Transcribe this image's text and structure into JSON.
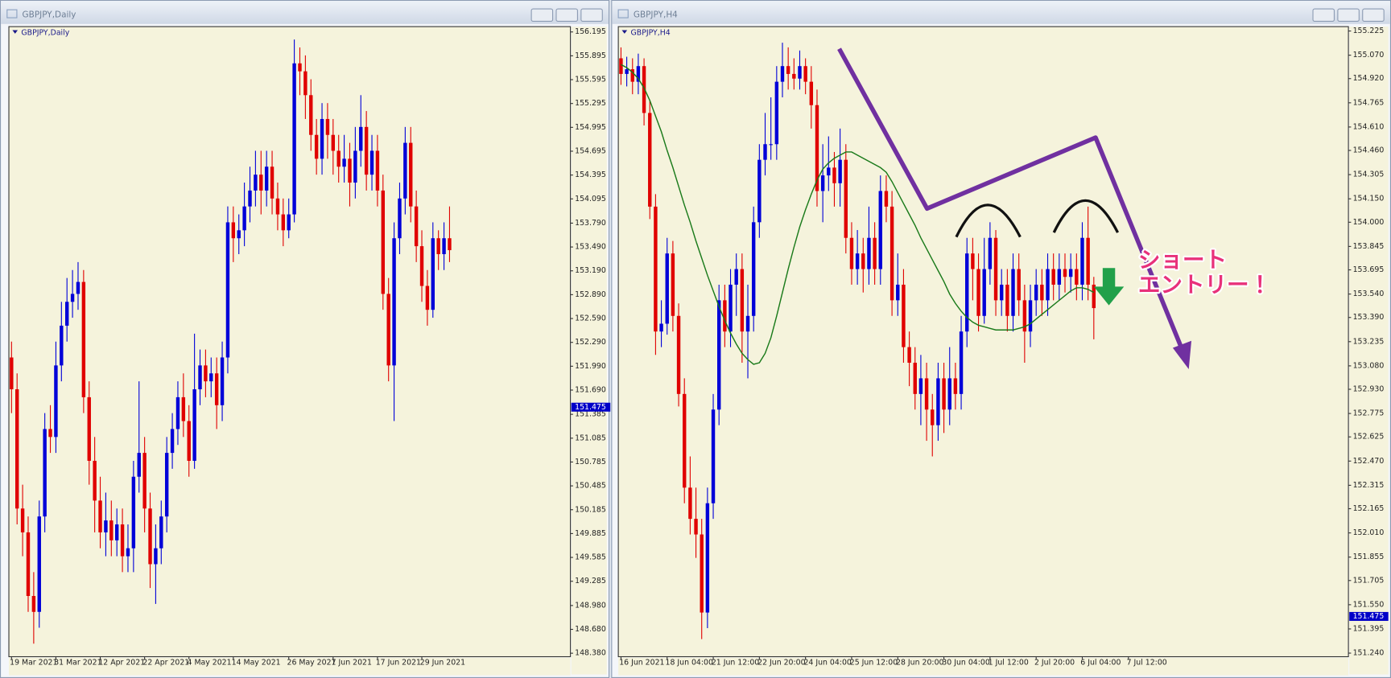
{
  "chart_data": [
    {
      "type": "candlestick",
      "window_title": "GBPJPY,Daily",
      "title": "GBPJPY,Daily",
      "up_color": "#0000d8",
      "down_color": "#e00000",
      "current_price": 151.475,
      "ylim": [
        148.336,
        156.262
      ],
      "yticks": [
        156.195,
        155.895,
        155.595,
        155.295,
        154.995,
        154.695,
        154.395,
        154.095,
        {
          "value": 153.79,
          "label": "153.790"
        },
        {
          "value": 153.49,
          "label": "153.490"
        },
        {
          "value": 153.19,
          "label": "153.190"
        },
        {
          "value": 152.89,
          "label": "152.890"
        },
        {
          "value": 152.59,
          "label": "152.590"
        },
        {
          "value": 152.29,
          "label": "152.290"
        },
        {
          "value": 151.99,
          "label": "151.990"
        },
        {
          "value": 151.69,
          "label": "151.690"
        },
        151.385,
        151.085,
        150.785,
        150.485,
        150.185,
        149.885,
        149.585,
        149.285,
        {
          "value": 148.98,
          "label": "148.980"
        },
        {
          "value": 148.68,
          "label": "148.680"
        },
        {
          "value": 148.38,
          "label": "148.380"
        }
      ],
      "categories": [
        "19 Mar 2021",
        null,
        null,
        null,
        null,
        null,
        null,
        null,
        "31 Mar 2021",
        null,
        null,
        null,
        null,
        null,
        null,
        null,
        "12 Apr 2021",
        null,
        null,
        null,
        null,
        null,
        null,
        null,
        "22 Apr 2021",
        null,
        null,
        null,
        null,
        null,
        null,
        null,
        "4 May 2021",
        null,
        null,
        null,
        null,
        null,
        null,
        null,
        "14 May 2021",
        null,
        null,
        null,
        null,
        null,
        null,
        null,
        null,
        null,
        "26 May 2021",
        null,
        null,
        null,
        null,
        null,
        null,
        null,
        "7 Jun 2021",
        null,
        null,
        null,
        null,
        null,
        null,
        null,
        "17 Jun 2021",
        null,
        null,
        null,
        null,
        null,
        null,
        null,
        "29 Jun 2021",
        null,
        null,
        null,
        null,
        null
      ],
      "open": [
        152.1,
        151.7,
        150.2,
        149.9,
        149.1,
        148.9,
        150.1,
        151.2,
        151.1,
        152,
        152.5,
        152.8,
        152.9,
        153.05,
        151.6,
        150.8,
        150.3,
        149.9,
        150.05,
        149.8,
        150,
        149.6,
        149.7,
        150.6,
        150.9,
        150.2,
        149.5,
        149.7,
        150.1,
        150.9,
        151.2,
        151.6,
        151.3,
        150.8,
        151.7,
        152,
        151.8,
        151.9,
        151.5,
        152.1,
        153.8,
        153.6,
        153.7,
        154,
        154.2,
        154.4,
        154.2,
        154.5,
        154.1,
        153.9,
        153.7,
        153.9,
        155.8,
        155.7,
        155.4,
        154.9,
        154.6,
        155.1,
        154.9,
        154.7,
        154.5,
        154.6,
        154.3,
        154.7,
        155,
        154.4,
        154.7,
        154.2,
        152.9,
        152,
        153.6,
        154.1,
        154.8,
        154,
        153.5,
        153,
        152.7,
        153.6,
        153.4,
        153.6
      ],
      "high": [
        152.3,
        151.9,
        150.5,
        150.1,
        149.4,
        150.3,
        151.4,
        151.5,
        152.3,
        152.8,
        153.1,
        153.2,
        153.3,
        153.2,
        151.8,
        151.1,
        150.6,
        150.4,
        150.3,
        150.2,
        150.2,
        150,
        150.8,
        151.8,
        151.1,
        150.4,
        150,
        150.3,
        151.1,
        151.4,
        151.8,
        151.9,
        151.5,
        152.4,
        152.2,
        152.2,
        152.1,
        152.1,
        152.3,
        154,
        154,
        153.9,
        154.3,
        154.5,
        154.7,
        154.7,
        154.7,
        154.7,
        154.3,
        154.1,
        154.1,
        156.1,
        156,
        155.9,
        155.6,
        155.1,
        155.3,
        155.3,
        155.1,
        154.9,
        154.9,
        154.8,
        155,
        155.4,
        155.2,
        154.9,
        154.9,
        154.4,
        153.1,
        153.8,
        154.3,
        155,
        155,
        154.2,
        153.7,
        153.2,
        153.8,
        153.7,
        153.8,
        154
      ],
      "low": [
        151.4,
        150,
        149.6,
        148.9,
        148.5,
        148.7,
        149.9,
        150.9,
        150.9,
        151.8,
        152.3,
        152.6,
        152.7,
        151.4,
        150.5,
        149.9,
        149.7,
        149.6,
        149.6,
        149.6,
        149.4,
        149.4,
        149.4,
        150.4,
        149.9,
        149.2,
        149,
        149.5,
        149.9,
        150.7,
        151,
        151.1,
        150.6,
        150.7,
        151.5,
        151.6,
        151.6,
        151.2,
        151.3,
        151.9,
        153.3,
        153.4,
        153.5,
        153.8,
        154,
        153.9,
        154,
        153.9,
        153.7,
        153.5,
        153.6,
        153.8,
        155.4,
        155.1,
        154.7,
        154.4,
        154.4,
        154.6,
        154.4,
        154.3,
        154.3,
        154,
        154.1,
        154.5,
        154.2,
        154.2,
        154,
        152.7,
        151.8,
        151.3,
        153.4,
        153.9,
        153.8,
        153.3,
        152.8,
        152.5,
        152.6,
        153.2,
        153.2,
        153.3
      ],
      "close": [
        151.7,
        150.2,
        149.9,
        149.1,
        148.9,
        150.1,
        151.2,
        151.1,
        152,
        152.5,
        152.8,
        152.9,
        153.05,
        151.6,
        150.8,
        150.3,
        149.9,
        150.05,
        149.8,
        150,
        149.6,
        149.7,
        150.6,
        150.9,
        150.2,
        149.5,
        149.7,
        150.1,
        150.9,
        151.2,
        151.6,
        151.3,
        150.8,
        151.7,
        152,
        151.8,
        151.9,
        151.5,
        152.1,
        153.8,
        153.6,
        153.7,
        154,
        154.2,
        154.4,
        154.2,
        154.5,
        154.1,
        153.9,
        153.7,
        153.9,
        155.8,
        155.7,
        155.4,
        154.9,
        154.6,
        155.1,
        154.9,
        154.7,
        154.5,
        154.6,
        154.3,
        154.7,
        155,
        154.4,
        154.7,
        154.2,
        152.9,
        152,
        153.6,
        154.1,
        154.8,
        154,
        153.5,
        153,
        152.7,
        153.6,
        153.4,
        153.6,
        153.45
      ]
    },
    {
      "type": "candlestick",
      "window_title": "GBPJPY,H4",
      "title": "GBPJPY,H4",
      "up_color": "#0000d8",
      "down_color": "#e00000",
      "current_price": 151.475,
      "ylim": [
        151.217,
        155.253
      ],
      "yticks": [
        155.225,
        {
          "value": 155.07,
          "label": "155.070"
        },
        {
          "value": 154.92,
          "label": "154.920"
        },
        154.765,
        {
          "value": 154.61,
          "label": "154.610"
        },
        {
          "value": 154.46,
          "label": "154.460"
        },
        154.305,
        {
          "value": 154.15,
          "label": "154.150"
        },
        {
          "value": 154,
          "label": "154.000"
        },
        153.845,
        153.695,
        {
          "value": 153.54,
          "label": "153.540"
        },
        {
          "value": 153.39,
          "label": "153.390"
        },
        153.235,
        {
          "value": 153.08,
          "label": "153.080"
        },
        {
          "value": 152.93,
          "label": "152.930"
        },
        152.775,
        152.625,
        {
          "value": 152.47,
          "label": "152.470"
        },
        152.315,
        152.165,
        {
          "value": 152.01,
          "label": "152.010"
        },
        151.855,
        151.705,
        {
          "value": 151.55,
          "label": "151.550"
        },
        151.395,
        {
          "value": 151.24,
          "label": "151.240"
        }
      ],
      "categories": [
        "16 Jun 2021",
        null,
        null,
        null,
        null,
        null,
        null,
        null,
        "18 Jun 04:00",
        null,
        null,
        null,
        null,
        null,
        null,
        null,
        "21 Jun 12:00",
        null,
        null,
        null,
        null,
        null,
        null,
        null,
        "22 Jun 20:00",
        null,
        null,
        null,
        null,
        null,
        null,
        null,
        "24 Jun 04:00",
        null,
        null,
        null,
        null,
        null,
        null,
        null,
        "25 Jun 12:00",
        null,
        null,
        null,
        null,
        null,
        null,
        null,
        "28 Jun 20:00",
        null,
        null,
        null,
        null,
        null,
        null,
        null,
        "30 Jun 04:00",
        null,
        null,
        null,
        null,
        null,
        null,
        null,
        "1 Jul 12:00",
        null,
        null,
        null,
        null,
        null,
        null,
        null,
        "2 Jul 20:00",
        null,
        null,
        null,
        null,
        null,
        null,
        null,
        "6 Jul 04:00",
        null,
        null,
        null,
        null,
        null,
        null,
        null,
        "7 Jul 12:00"
      ],
      "open": [
        155.05,
        154.95,
        154.98,
        154.9,
        155,
        154.7,
        154.1,
        153.3,
        153.35,
        153.8,
        153.4,
        152.9,
        152.3,
        152.1,
        152,
        151.5,
        152.2,
        152.8,
        153.5,
        153.3,
        153.6,
        153.7,
        153.3,
        153.4,
        154,
        154.4,
        154.5,
        154.5,
        154.9,
        155,
        154.95,
        154.92,
        155,
        154.9,
        154.75,
        154.2,
        154.3,
        154.35,
        154.25,
        154.4,
        153.9,
        153.7,
        153.8,
        153.7,
        153.9,
        153.7,
        154.2,
        154.1,
        153.5,
        153.6,
        153.2,
        153.1,
        152.9,
        153,
        152.8,
        152.7,
        153,
        152.8,
        153,
        152.9,
        153.3,
        153.8,
        153.7,
        153.4,
        153.7,
        153.9,
        153.5,
        153.6,
        153.4,
        153.7,
        153.5,
        153.3,
        153.5,
        153.6,
        153.5,
        153.7,
        153.6,
        153.7,
        153.65,
        153.7,
        153.6,
        153.9,
        153.6,
        null,
        null,
        null,
        null,
        null,
        null
      ],
      "high": [
        155.12,
        155.06,
        155.05,
        155.08,
        155.05,
        154.78,
        154.18,
        153.5,
        153.9,
        153.88,
        153.48,
        153,
        152.5,
        152.3,
        152.1,
        152.3,
        152.9,
        153.6,
        153.6,
        153.7,
        153.8,
        153.8,
        153.6,
        154.1,
        154.5,
        154.7,
        154.8,
        155,
        155.15,
        155.12,
        155.05,
        155.1,
        155.05,
        155,
        154.85,
        154.5,
        154.55,
        154.45,
        154.6,
        154.5,
        154,
        153.95,
        153.9,
        154.1,
        154,
        154.3,
        154.3,
        154.2,
        153.8,
        153.7,
        153.3,
        153.2,
        153.15,
        153.1,
        152.9,
        153.1,
        153.1,
        153.2,
        153.1,
        153.4,
        153.9,
        153.9,
        153.8,
        153.9,
        154,
        153.95,
        153.7,
        153.7,
        153.8,
        153.8,
        153.6,
        153.6,
        153.7,
        153.7,
        153.8,
        153.8,
        153.8,
        153.8,
        153.8,
        153.8,
        154,
        154.1,
        153.65,
        null,
        null,
        null,
        null,
        null,
        null
      ],
      "low": [
        154.88,
        154.87,
        154.82,
        154.82,
        154.62,
        154.02,
        153.15,
        153.2,
        153.28,
        153.3,
        152.82,
        152.2,
        152,
        151.85,
        151.33,
        151.4,
        152.1,
        152.7,
        153.2,
        153.2,
        153.4,
        153.1,
        153,
        153.3,
        153.9,
        154.3,
        154.4,
        154.4,
        154.8,
        154.85,
        154.85,
        154.85,
        154.82,
        154.6,
        154.1,
        154,
        154.2,
        154.1,
        154.1,
        153.8,
        153.6,
        153.6,
        153.55,
        153.6,
        153.6,
        153.6,
        154,
        153.4,
        153.4,
        153.1,
        152.95,
        152.8,
        152.7,
        152.6,
        152.5,
        152.6,
        152.65,
        152.7,
        152.8,
        152.8,
        153.2,
        153.5,
        153.3,
        153.35,
        153.6,
        153.4,
        153.4,
        153.3,
        153.3,
        153.4,
        153.1,
        153.2,
        153.4,
        153.4,
        153.4,
        153.5,
        153.5,
        153.55,
        153.55,
        153.5,
        153.5,
        153.5,
        153.25,
        null,
        null,
        null,
        null,
        null,
        null
      ],
      "close": [
        154.95,
        154.98,
        154.9,
        155,
        154.7,
        154.1,
        153.3,
        153.35,
        153.8,
        153.4,
        152.9,
        152.3,
        152.1,
        152,
        151.5,
        152.2,
        152.8,
        153.5,
        153.3,
        153.6,
        153.7,
        153.3,
        153.4,
        154,
        154.4,
        154.5,
        154.5,
        154.9,
        155,
        154.95,
        154.92,
        155,
        154.9,
        154.75,
        154.2,
        154.3,
        154.35,
        154.25,
        154.4,
        153.9,
        153.7,
        153.8,
        153.7,
        153.9,
        153.7,
        154.2,
        154.1,
        153.5,
        153.6,
        153.2,
        153.1,
        152.9,
        153,
        152.8,
        152.7,
        153,
        152.8,
        153,
        152.9,
        153.3,
        153.8,
        153.7,
        153.4,
        153.7,
        153.9,
        153.5,
        153.6,
        153.4,
        153.7,
        153.5,
        153.3,
        153.5,
        153.6,
        153.5,
        153.7,
        153.6,
        153.7,
        153.65,
        153.7,
        153.6,
        153.9,
        153.6,
        153.45,
        null,
        null,
        null,
        null,
        null,
        null
      ],
      "ma": {
        "color": "#1a7a1a",
        "values": [
          155.01,
          154.99,
          154.96,
          154.92,
          154.86,
          154.78,
          154.68,
          154.58,
          154.46,
          154.35,
          154.23,
          154.11,
          154,
          153.88,
          153.77,
          153.66,
          153.56,
          153.46,
          153.37,
          153.29,
          153.22,
          153.16,
          153.12,
          153.09,
          153.1,
          153.16,
          153.26,
          153.4,
          153.55,
          153.7,
          153.84,
          153.97,
          154.08,
          154.18,
          154.27,
          154.34,
          154.38,
          154.41,
          154.43,
          154.45,
          154.45,
          154.43,
          154.41,
          154.39,
          154.37,
          154.35,
          154.32,
          154.26,
          154.19,
          154.12,
          154.05,
          153.98,
          153.9,
          153.83,
          153.76,
          153.69,
          153.62,
          153.54,
          153.48,
          153.43,
          153.39,
          153.36,
          153.34,
          153.33,
          153.32,
          153.31,
          153.31,
          153.31,
          153.31,
          153.32,
          153.33,
          153.35,
          153.38,
          153.41,
          153.44,
          153.47,
          153.5,
          153.53,
          153.56,
          153.58,
          153.58,
          153.57,
          153.55,
          null,
          null,
          null,
          null,
          null,
          null
        ]
      },
      "annotations": [
        "ショート",
        "エントリー！"
      ]
    }
  ]
}
